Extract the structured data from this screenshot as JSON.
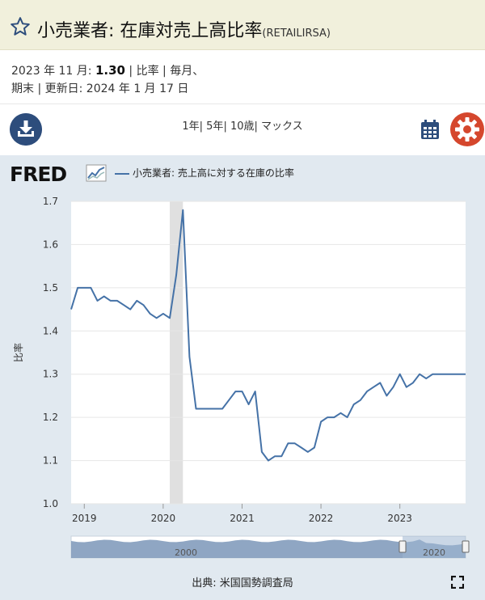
{
  "header": {
    "title": "小売業者: 在庫対売上高比率",
    "series_code": "(RETAILIRSA)"
  },
  "meta": {
    "line1_prefix": "2023 年 11 月: ",
    "value": "1.30",
    "line1_suffix": " | 比率 | 毎月、",
    "line2": "期末 | 更新日: 2024 年 1 月 17 日"
  },
  "toolbar": {
    "ranges": [
      "1年",
      "5年",
      "10歳",
      "マックス"
    ]
  },
  "footer": {
    "source": "出典: 米国国勢調査局"
  },
  "navigator": {
    "labels": [
      "2000",
      "2020"
    ]
  },
  "colors": {
    "line": "#4572a7",
    "plot_bg": "#ffffff",
    "chart_bg": "#e1e9f0",
    "recession": "#e0e0e0",
    "header_bg": "#f1f0dc",
    "download": "#2d4d7c",
    "settings": "#d5472d"
  },
  "icons": [
    "star-icon",
    "download-icon",
    "calendar-icon",
    "gear-icon",
    "expand-icon",
    "fred-chart-icon"
  ],
  "chart_data": {
    "type": "line",
    "logo": "FRED",
    "legend_position": "top-left",
    "ylabel": "比率",
    "ylim": [
      1.0,
      1.7
    ],
    "yticks": [
      "1.0",
      "1.1",
      "1.2",
      "1.3",
      "1.4",
      "1.5",
      "1.6",
      "1.7"
    ],
    "xticks": [
      {
        "label": "2019",
        "date": "2019-01"
      },
      {
        "label": "2020",
        "date": "2020-01"
      },
      {
        "label": "2021",
        "date": "2021-01"
      },
      {
        "label": "2022",
        "date": "2022-01"
      },
      {
        "label": "2023",
        "date": "2023-01"
      }
    ],
    "x_range": [
      "2018-11",
      "2023-11"
    ],
    "recession": [
      "2020-02",
      "2020-04"
    ],
    "grid": true,
    "series": [
      {
        "name": "小売業者: 売上高に対する在庫の比率",
        "x": [
          "2018-11",
          "2018-12",
          "2019-01",
          "2019-02",
          "2019-03",
          "2019-04",
          "2019-05",
          "2019-06",
          "2019-07",
          "2019-08",
          "2019-09",
          "2019-10",
          "2019-11",
          "2019-12",
          "2020-01",
          "2020-02",
          "2020-03",
          "2020-04",
          "2020-05",
          "2020-06",
          "2020-07",
          "2020-08",
          "2020-09",
          "2020-10",
          "2020-11",
          "2020-12",
          "2021-01",
          "2021-02",
          "2021-03",
          "2021-04",
          "2021-05",
          "2021-06",
          "2021-07",
          "2021-08",
          "2021-09",
          "2021-10",
          "2021-11",
          "2021-12",
          "2022-01",
          "2022-02",
          "2022-03",
          "2022-04",
          "2022-05",
          "2022-06",
          "2022-07",
          "2022-08",
          "2022-09",
          "2022-10",
          "2022-11",
          "2022-12",
          "2023-01",
          "2023-02",
          "2023-03",
          "2023-04",
          "2023-05",
          "2023-06",
          "2023-07",
          "2023-08",
          "2023-09",
          "2023-10",
          "2023-11"
        ],
        "values": [
          1.45,
          1.5,
          1.5,
          1.5,
          1.47,
          1.48,
          1.47,
          1.47,
          1.46,
          1.45,
          1.47,
          1.46,
          1.44,
          1.43,
          1.44,
          1.43,
          1.53,
          1.68,
          1.34,
          1.22,
          1.22,
          1.22,
          1.22,
          1.22,
          1.24,
          1.26,
          1.26,
          1.23,
          1.26,
          1.12,
          1.1,
          1.11,
          1.11,
          1.14,
          1.14,
          1.13,
          1.12,
          1.13,
          1.19,
          1.2,
          1.2,
          1.21,
          1.2,
          1.23,
          1.24,
          1.26,
          1.27,
          1.28,
          1.25,
          1.27,
          1.3,
          1.27,
          1.28,
          1.3,
          1.29,
          1.3,
          1.3,
          1.3,
          1.3,
          1.3,
          1.3
        ]
      }
    ]
  }
}
